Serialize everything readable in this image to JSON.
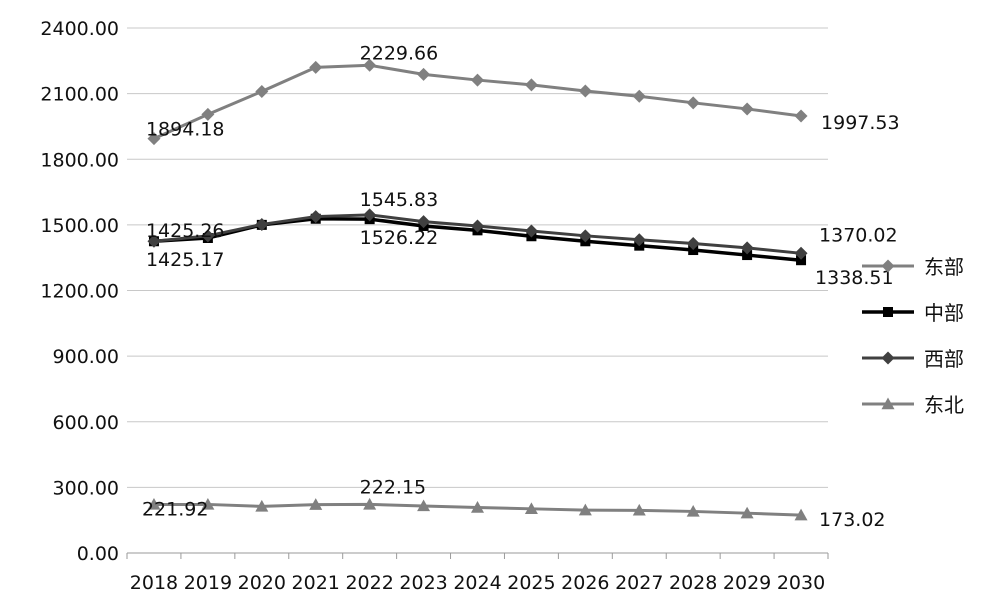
{
  "chart_data": {
    "type": "line",
    "x": [
      "2018",
      "2019",
      "2020",
      "2021",
      "2022",
      "2023",
      "2024",
      "2025",
      "2026",
      "2027",
      "2028",
      "2029",
      "2030"
    ],
    "ylim": [
      0,
      2400
    ],
    "yticks": [
      "0.00",
      "300.00",
      "600.00",
      "900.00",
      "1200.00",
      "1500.00",
      "1800.00",
      "2100.00",
      "2400.00"
    ],
    "grid": "horizontal",
    "legend_position": "right",
    "series": [
      {
        "name": "东部",
        "color": "#808080",
        "marker": "diamond",
        "values": [
          1894.18,
          2005,
          2110,
          2220,
          2229.66,
          2188,
          2162,
          2140,
          2112,
          2088,
          2058,
          2030,
          1997.53
        ],
        "labels": [
          {
            "index": 0,
            "text": "1894.18"
          },
          {
            "index": 4,
            "text": "2229.66"
          },
          {
            "index": 12,
            "text": "1997.53"
          }
        ]
      },
      {
        "name": "中部",
        "color": "#000000",
        "marker": "square",
        "values": [
          1425.17,
          1440,
          1500,
          1528,
          1526.22,
          1495,
          1475,
          1448,
          1425,
          1405,
          1385,
          1362,
          1338.51
        ],
        "labels": [
          {
            "index": 0,
            "text": "1425.17"
          },
          {
            "index": 4,
            "text": "1526.22"
          },
          {
            "index": 12,
            "text": "1338.51"
          }
        ]
      },
      {
        "name": "西部",
        "color": "#404040",
        "marker": "diamond",
        "values": [
          1425.26,
          1450,
          1502,
          1538,
          1545.83,
          1515,
          1495,
          1472,
          1450,
          1432,
          1415,
          1395,
          1370.02
        ],
        "labels": [
          {
            "index": 0,
            "text": "1425.26"
          },
          {
            "index": 4,
            "text": "1545.83"
          },
          {
            "index": 12,
            "text": "1370.02"
          }
        ]
      },
      {
        "name": "东北",
        "color": "#808080",
        "marker": "triangle",
        "values": [
          221.92,
          222,
          213,
          221,
          222.15,
          215,
          208,
          202,
          196,
          195,
          190,
          182,
          173.02
        ],
        "labels": [
          {
            "index": 0,
            "text": "221.92"
          },
          {
            "index": 4,
            "text": "222.15"
          },
          {
            "index": 12,
            "text": "173.02"
          }
        ]
      }
    ]
  }
}
